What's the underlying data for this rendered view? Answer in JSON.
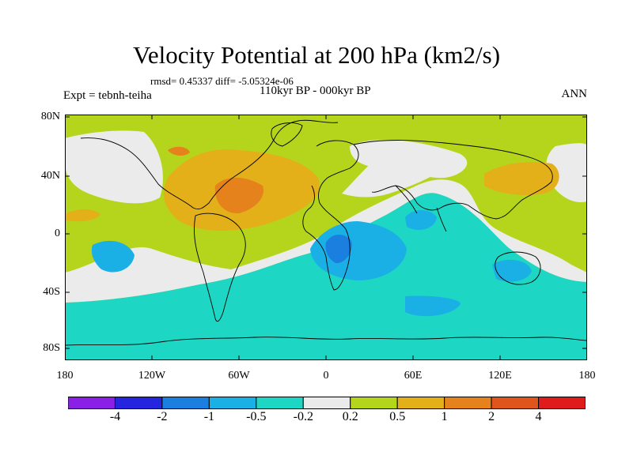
{
  "title": "Velocity Potential at 200 hPa (km2/s)",
  "stats": "rmsd= 0.45337 diff= -5.05324e-06",
  "period": "110kyr BP - 000kyr BP",
  "experiment": "Expt = tebnh-teiha",
  "season": "ANN",
  "axes": {
    "lat_labels": [
      "80N",
      "40N",
      "0",
      "40S",
      "80S"
    ],
    "lon_labels": [
      "180",
      "120W",
      "60W",
      "0",
      "60E",
      "120E",
      "180"
    ]
  },
  "colorbar": {
    "labels": [
      "-4",
      "-2",
      "-1",
      "-0.5",
      "-0.2",
      "0.2",
      "0.5",
      "1",
      "2",
      "4"
    ],
    "colors": [
      "#8a1fe6",
      "#2525e0",
      "#1b7fe0",
      "#1ab0e6",
      "#1ed6c4",
      "#ebebeb",
      "#b5d51c",
      "#e3b01a",
      "#e5821c",
      "#e0551b",
      "#e01b1b"
    ]
  },
  "colors": {
    "ocean_bg": "#b5d51c",
    "neutral": "#ebebeb",
    "coast": "#000000"
  }
}
